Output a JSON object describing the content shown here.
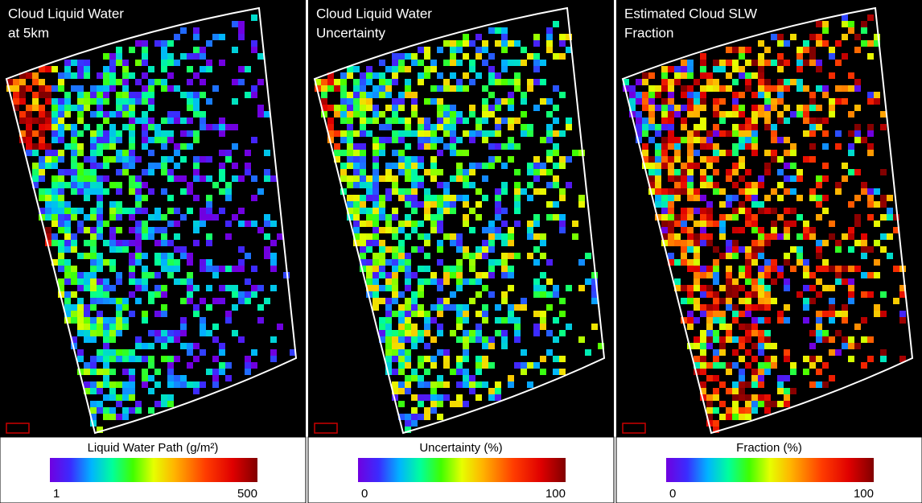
{
  "panels": [
    {
      "title": [
        "Cloud Liquid Water",
        "at 5km"
      ],
      "colorbar": {
        "label": "Liquid Water Path (g/m²)",
        "min": 1,
        "max": 500
      }
    },
    {
      "title": [
        "Cloud Liquid Water",
        "Uncertainty"
      ],
      "colorbar": {
        "label": "Uncertainty (%)",
        "min": 0,
        "max": 100
      }
    },
    {
      "title": [
        "Estimated Cloud SLW",
        "Fraction"
      ],
      "colorbar": {
        "label": "Fraction (%)",
        "min": 0,
        "max": 100
      }
    }
  ]
}
